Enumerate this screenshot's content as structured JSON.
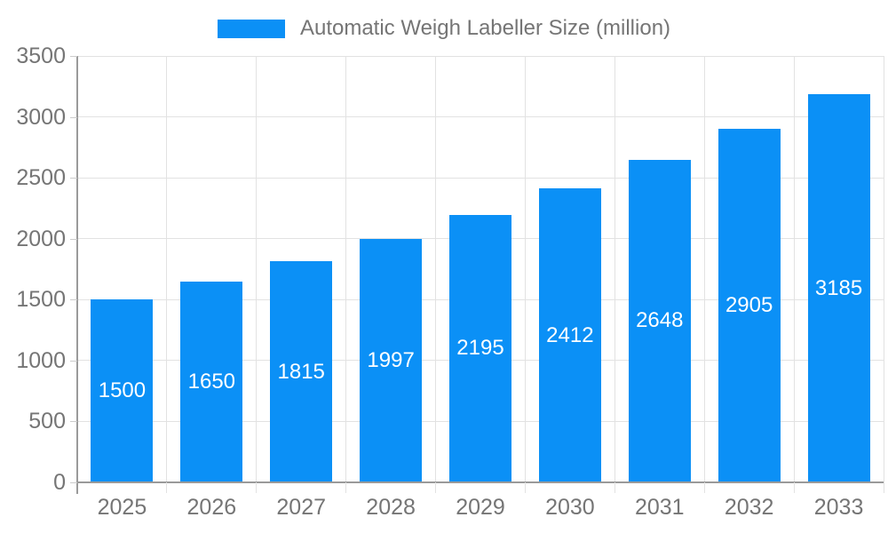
{
  "chart_data": {
    "type": "bar",
    "title": "Automatic Weigh Labeller Size (million)",
    "legend": "Automatic Weigh Labeller Size (million)",
    "legend_position": "top-center",
    "categories": [
      "2025",
      "2026",
      "2027",
      "2028",
      "2029",
      "2030",
      "2031",
      "2032",
      "2033"
    ],
    "values": [
      1500,
      1650,
      1815,
      1997,
      2195,
      2412,
      2648,
      2905,
      3185
    ],
    "xlabel": "",
    "ylabel": "",
    "ylim": [
      0,
      3500
    ],
    "yticks": [
      0,
      500,
      1000,
      1500,
      2000,
      2500,
      3000,
      3500
    ],
    "grid": true,
    "bar_labels_inside": true,
    "colors": {
      "bar": "#0B90F6",
      "bar_label": "#FFFFFF",
      "axis_text": "#757575",
      "grid_line": "#E2E2E2",
      "axis_line": "#9A9A9A",
      "tick_line": "#CCCCCC",
      "background": "#FFFFFF"
    }
  }
}
